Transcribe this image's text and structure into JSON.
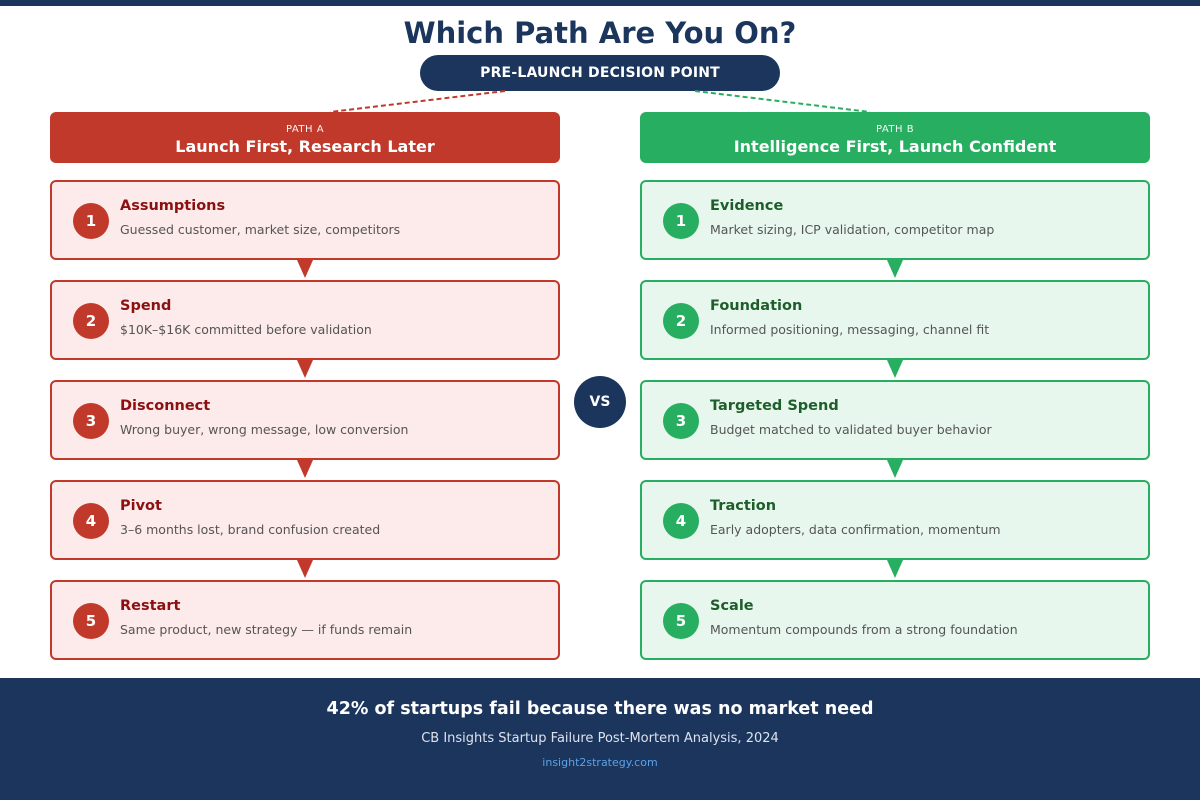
{
  "title": "Which Path Are You On?",
  "decision_point": "PRE-LAUNCH DECISION POINT",
  "vs_label": "VS",
  "colors": {
    "navy": "#1b355c",
    "red": "#c0392b",
    "green": "#27ae60"
  },
  "path_a": {
    "kicker": "PATH A",
    "title": "Launch First, Research Later",
    "steps": [
      {
        "num": "1",
        "title": "Assumptions",
        "desc": "Guessed customer, market size, competitors"
      },
      {
        "num": "2",
        "title": "Spend",
        "desc": "$10K–$16K committed before validation"
      },
      {
        "num": "3",
        "title": "Disconnect",
        "desc": "Wrong buyer, wrong message, low conversion"
      },
      {
        "num": "4",
        "title": "Pivot",
        "desc": "3–6 months lost, brand confusion created"
      },
      {
        "num": "5",
        "title": "Restart",
        "desc": "Same product, new strategy — if funds remain"
      }
    ]
  },
  "path_b": {
    "kicker": "PATH B",
    "title": "Intelligence First, Launch Confident",
    "steps": [
      {
        "num": "1",
        "title": "Evidence",
        "desc": "Market sizing, ICP validation, competitor map"
      },
      {
        "num": "2",
        "title": "Foundation",
        "desc": "Informed positioning, messaging, channel fit"
      },
      {
        "num": "3",
        "title": "Targeted Spend",
        "desc": "Budget matched to validated buyer behavior"
      },
      {
        "num": "4",
        "title": "Traction",
        "desc": "Early adopters, data confirmation, momentum"
      },
      {
        "num": "5",
        "title": "Scale",
        "desc": "Momentum compounds from a strong foundation"
      }
    ]
  },
  "footer": {
    "stat": "42% of startups fail because there was no market need",
    "source": "CB Insights Startup Failure Post-Mortem Analysis, 2024",
    "site": "insight2strategy.com"
  }
}
